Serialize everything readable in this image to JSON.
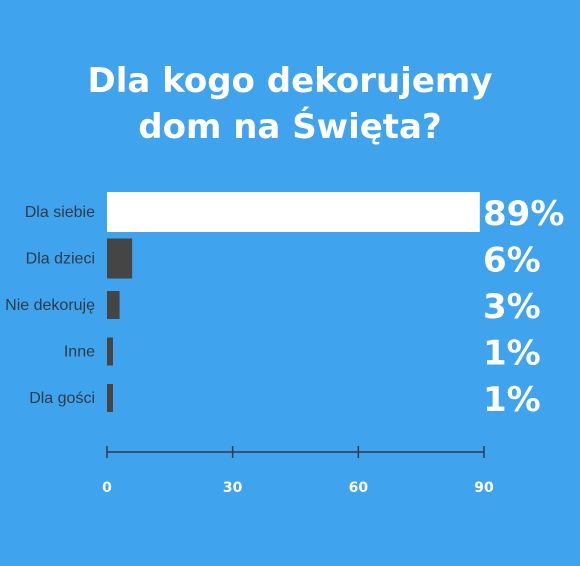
{
  "title_lines": [
    "Dla kogo dekorujemy",
    "dom na Święta?"
  ],
  "colors": {
    "background": "#3fa3ee",
    "highlight_bar": "#ffffff",
    "bar": "#454545",
    "axis": "#2f3b47",
    "text_light": "#ffffff",
    "text_dark": "#2f3b47"
  },
  "chart_data": {
    "type": "bar",
    "orientation": "horizontal",
    "categories": [
      "Dla siebie",
      "Dla dzieci",
      "Nie dekoruję",
      "Inne",
      "Dla gości"
    ],
    "values": [
      89,
      6,
      3,
      1,
      1
    ],
    "value_labels": [
      "89%",
      "6%",
      "3%",
      "1%",
      "1%"
    ],
    "highlight_index": 0,
    "xlim": [
      0,
      90
    ],
    "xticks": [
      0,
      30,
      60,
      90
    ],
    "title": "Dla kogo dekorujemy dom na Święta?",
    "grid": false
  }
}
